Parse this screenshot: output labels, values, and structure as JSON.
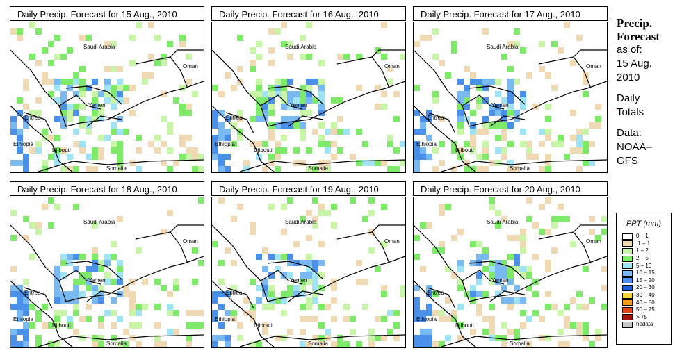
{
  "panels": [
    {
      "title": "Daily Precip. Forecast for  15 Aug., 2010",
      "seed": 11
    },
    {
      "title": "Daily Precip. Forecast for  16 Aug., 2010",
      "seed": 23
    },
    {
      "title": "Daily Precip. Forecast for  17 Aug., 2010",
      "seed": 37
    },
    {
      "title": "Daily Precip. Forecast for  18 Aug., 2010",
      "seed": 41
    },
    {
      "title": "Daily Precip. Forecast for  19 Aug., 2010",
      "seed": 53
    },
    {
      "title": "Daily Precip. Forecast for  20 Aug., 2010",
      "seed": 67
    }
  ],
  "map_labels": {
    "saudi": "Saudi Arabia",
    "oman": "Oman",
    "yemen": "Yemen",
    "eritrea": "Eritrea",
    "ethiopia": "Ethiopia",
    "djibouti": "Djibouti",
    "somalia": "Somalia"
  },
  "side": {
    "heading1": "Precip.",
    "heading2": "Forecast",
    "asof": "as of:",
    "date1": "15 Aug.",
    "date2": "2010",
    "daily": "Daily",
    "totals": "Totals",
    "data": "Data:",
    "src1": "NOAA–",
    "src2": "GFS"
  },
  "legend": {
    "title": "PPT (mm)",
    "items": [
      {
        "label": "0 – 1",
        "color": "#ffffff"
      },
      {
        "label": ".1 – 1",
        "color": "#f0d9b5"
      },
      {
        "label": "1 – 2",
        "color": "#c9f5a8"
      },
      {
        "label": "2 – 5",
        "color": "#7fea6a"
      },
      {
        "label": "5 – 10",
        "color": "#9fe3f5"
      },
      {
        "label": "10 – 15",
        "color": "#79b9f2"
      },
      {
        "label": "15 – 20",
        "color": "#4a8fe8"
      },
      {
        "label": "20 – 30",
        "color": "#1f5fd6"
      },
      {
        "label": "30 – 40",
        "color": "#f5d637"
      },
      {
        "label": "40 – 50",
        "color": "#f59a1e"
      },
      {
        "label": "50 – 75",
        "color": "#e0451a"
      },
      {
        "label": "> 75",
        "color": "#a3160c"
      },
      {
        "label": "nodata",
        "color": "#c8c8c8"
      }
    ]
  }
}
